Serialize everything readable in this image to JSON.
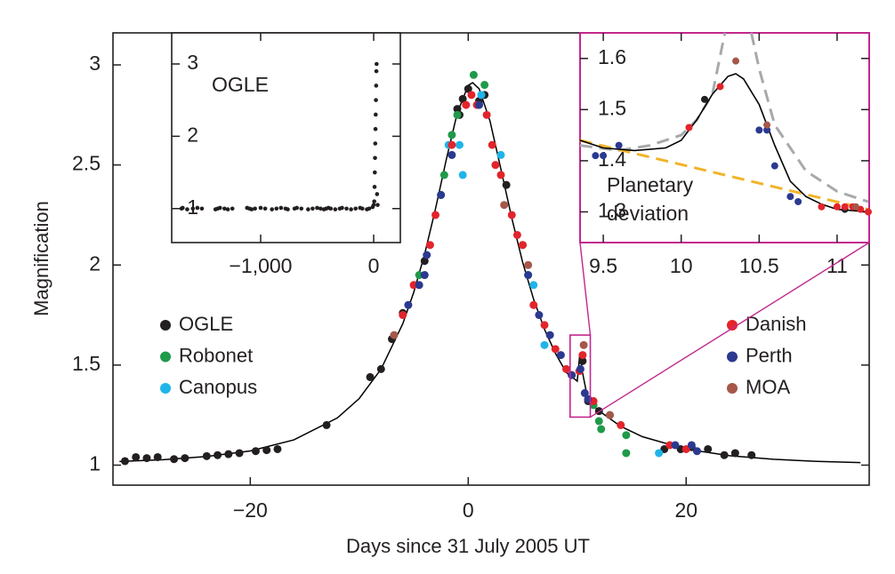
{
  "chart_data": [
    {
      "type": "scatter",
      "xlabel": "Days since 31 July 2005 UT",
      "ylabel": "Magnification",
      "xlim": [
        -32.6,
        36.8
      ],
      "ylim": [
        0.9,
        3.16
      ],
      "xticks": [
        {
          "value": -20,
          "label": "−20"
        },
        0,
        20
      ],
      "yticks": [
        1,
        1.5,
        2,
        2.5,
        3
      ],
      "series": [
        {
          "name": "OGLE",
          "color": "#231f20",
          "x": [
            -31.5,
            -30.5,
            -29.5,
            -28.5,
            -27,
            -26,
            -24,
            -23,
            -22,
            -21,
            -19.5,
            -18.5,
            -17.5,
            -13,
            -9,
            -8,
            -7,
            -6,
            -4,
            -1,
            -0.8,
            -0.5,
            0,
            1,
            1.5,
            3.5,
            10.5,
            11,
            12,
            18,
            19.5,
            20.5,
            22,
            23.5,
            24.5,
            26
          ],
          "values": [
            1.02,
            1.04,
            1.035,
            1.04,
            1.03,
            1.035,
            1.045,
            1.05,
            1.055,
            1.06,
            1.07,
            1.075,
            1.08,
            1.2,
            1.44,
            1.48,
            1.63,
            1.76,
            2.02,
            2.78,
            2.75,
            2.83,
            2.88,
            2.82,
            2.85,
            2.4,
            1.52,
            1.32,
            1.27,
            1.08,
            1.08,
            1.09,
            1.08,
            1.05,
            1.06,
            1.05
          ]
        },
        {
          "name": "Robonet",
          "color": "#1f9a4a",
          "x": [
            -4.5,
            -2.5,
            -2.2,
            -1.5,
            -1,
            0.5,
            1.5,
            5,
            11.5,
            12,
            12.2,
            13,
            14.5,
            14.5
          ],
          "values": [
            1.95,
            2.35,
            2.45,
            2.65,
            2.75,
            2.95,
            2.9,
            2.1,
            1.3,
            1.22,
            1.18,
            1.25,
            1.15,
            1.06
          ]
        },
        {
          "name": "Canopus",
          "color": "#1fb5e8",
          "x": [
            -1.8,
            -0.8,
            -0.5,
            1.2,
            3,
            5.5,
            6,
            7,
            17.5
          ],
          "values": [
            2.6,
            2.6,
            2.45,
            2.85,
            2.55,
            1.95,
            1.9,
            1.6,
            1.06
          ]
        },
        {
          "name": "Danish",
          "color": "#e3242b",
          "x": [
            -6,
            -5,
            -3.5,
            -3,
            -1.5,
            -0.2,
            0.3,
            0.8,
            1.7,
            2.2,
            2.5,
            3,
            4,
            4.5,
            5,
            6,
            7,
            8,
            9,
            9.5,
            10.2,
            10.5,
            11.5,
            14,
            18.5,
            20
          ],
          "values": [
            1.75,
            1.9,
            2.1,
            2.25,
            2.6,
            2.8,
            2.85,
            2.8,
            2.75,
            2.6,
            2.5,
            2.45,
            2.25,
            2.15,
            2.1,
            1.8,
            1.7,
            1.58,
            1.48,
            1.45,
            1.47,
            1.55,
            1.32,
            1.2,
            1.1,
            1.08
          ]
        },
        {
          "name": "Perth",
          "color": "#2b3990",
          "x": [
            -5.5,
            -4.5,
            -4,
            -3.8,
            -2.5,
            -1.5,
            1,
            5.5,
            6.5,
            7.5,
            8.5,
            9.5,
            10.3,
            10.7,
            11,
            19,
            20.5,
            21
          ],
          "values": [
            1.8,
            1.9,
            1.95,
            2.05,
            2.35,
            2.55,
            2.8,
            1.95,
            1.75,
            1.65,
            1.55,
            1.45,
            1.48,
            1.36,
            1.33,
            1.1,
            1.1,
            1.07
          ]
        },
        {
          "name": "MOA",
          "color": "#a5574a",
          "x": [
            -6.8,
            3.3,
            5.5,
            10.6,
            13
          ],
          "values": [
            1.65,
            2.3,
            2.0,
            1.6,
            1.25
          ]
        }
      ],
      "model": {
        "color": "#000000",
        "x": [
          -32,
          -28,
          -24,
          -20,
          -16,
          -12,
          -10,
          -8,
          -6,
          -5,
          -4,
          -3,
          -2,
          -1,
          0,
          0.4,
          1,
          2,
          3,
          4,
          5,
          6,
          7,
          8,
          9,
          10,
          10.25,
          10.5,
          11,
          12,
          14,
          16,
          20,
          24,
          28,
          32,
          36
        ],
        "values": [
          1.018,
          1.027,
          1.043,
          1.071,
          1.126,
          1.236,
          1.333,
          1.48,
          1.707,
          1.863,
          2.054,
          2.281,
          2.53,
          2.76,
          2.898,
          2.911,
          2.881,
          2.719,
          2.48,
          2.234,
          2.013,
          1.829,
          1.679,
          1.559,
          1.463,
          1.42,
          1.56,
          1.46,
          1.322,
          1.271,
          1.194,
          1.142,
          1.08,
          1.047,
          1.029,
          1.019,
          1.013
        ]
      }
    },
    {
      "type": "scatter",
      "xlim": [
        -1787,
        236
      ],
      "ylim": [
        0.53,
        3.43
      ],
      "xticks": [
        {
          "value": -1000,
          "label": "−1,000"
        },
        0
      ],
      "yticks": [
        1,
        2,
        3
      ],
      "series": [
        {
          "name": "OGLE",
          "color": "#231f20",
          "x": [
            -1700,
            -1690,
            -1650,
            -1600,
            -1560,
            -1520,
            -1400,
            -1380,
            -1360,
            -1320,
            -1290,
            -1250,
            -1120,
            -1100,
            -1080,
            -1050,
            -1000,
            -960,
            -900,
            -860,
            -820,
            -780,
            -760,
            -700,
            -680,
            -640,
            -580,
            -540,
            -500,
            -470,
            -440,
            -420,
            -400,
            -380,
            -340,
            -300,
            -280,
            -240,
            -200,
            -160,
            -120,
            -100,
            -60,
            -40,
            -10,
            0,
            5,
            8,
            10,
            12,
            14,
            16,
            18,
            20,
            22,
            24,
            26,
            30,
            35
          ],
          "values": [
            1,
            1.01,
            0.99,
            1,
            1.01,
            1,
            0.99,
            1,
            1.01,
            1,
            0.99,
            1,
            1.01,
            1,
            0.99,
            1,
            1.01,
            1,
            0.99,
            1,
            1.01,
            1,
            0.99,
            1,
            1.01,
            1,
            0.99,
            1,
            1.01,
            1,
            0.99,
            1,
            1.01,
            1,
            0.99,
            1,
            1.01,
            1,
            0.99,
            1,
            1.01,
            1,
            0.99,
            1,
            1.02,
            1.05,
            1.1,
            1.3,
            1.5,
            1.7,
            1.9,
            2.1,
            2.3,
            2.5,
            2.7,
            2.9,
            3.0,
            1.2,
            1.05
          ]
        }
      ]
    },
    {
      "type": "scatter",
      "xlim": [
        9.351,
        11.206
      ],
      "ylim": [
        1.24,
        1.65
      ],
      "xticks": [
        9.5,
        10,
        10.5,
        11
      ],
      "yticks": [
        1.3,
        1.4,
        1.5,
        1.6
      ],
      "annotation": [
        "Planetary",
        "deviation"
      ],
      "series": [
        {
          "color": "#231f20",
          "x": [
            10.15,
            11.05
          ],
          "values": [
            1.52,
            1.305
          ]
        },
        {
          "color": "#e3242b",
          "x": [
            10.05,
            10.25,
            10.9,
            11.0,
            11.05,
            11.1,
            11.15,
            11.2
          ],
          "values": [
            1.465,
            1.545,
            1.31,
            1.31,
            1.31,
            1.31,
            1.305,
            1.3
          ]
        },
        {
          "color": "#2b3990",
          "x": [
            9.45,
            9.5,
            9.6,
            10.5,
            10.55,
            10.6,
            10.7,
            10.75
          ],
          "values": [
            1.41,
            1.41,
            1.43,
            1.46,
            1.46,
            1.39,
            1.33,
            1.32
          ]
        },
        {
          "color": "#a5574a",
          "x": [
            10.35,
            10.55,
            11.12
          ],
          "values": [
            1.595,
            1.47,
            1.31
          ]
        }
      ],
      "lines": [
        {
          "color": "#a7a9ac",
          "dashed": true,
          "x": [
            9.35,
            9.6,
            9.8,
            10,
            10.1,
            10.2,
            10.28,
            null,
            10.45,
            10.5,
            10.6,
            10.8,
            11,
            11.2
          ],
          "values": [
            1.43,
            1.42,
            1.43,
            1.45,
            1.48,
            1.53,
            1.65,
            null,
            1.65,
            1.58,
            1.47,
            1.38,
            1.34,
            1.32
          ]
        },
        {
          "color": "#f0b429",
          "dashed": true,
          "x": [
            9.35,
            11.2
          ],
          "values": [
            1.44,
            1.305
          ]
        },
        {
          "color": "#000000",
          "dashed": false,
          "x": [
            9.35,
            9.5,
            9.7,
            9.9,
            10,
            10.1,
            10.2,
            10.3,
            10.35,
            10.4,
            10.5,
            10.6,
            10.7,
            10.8,
            10.9,
            11,
            11.2
          ],
          "values": [
            1.44,
            1.425,
            1.42,
            1.425,
            1.44,
            1.48,
            1.53,
            1.565,
            1.57,
            1.56,
            1.51,
            1.43,
            1.36,
            1.33,
            1.315,
            1.305,
            1.3
          ]
        }
      ]
    }
  ]
}
